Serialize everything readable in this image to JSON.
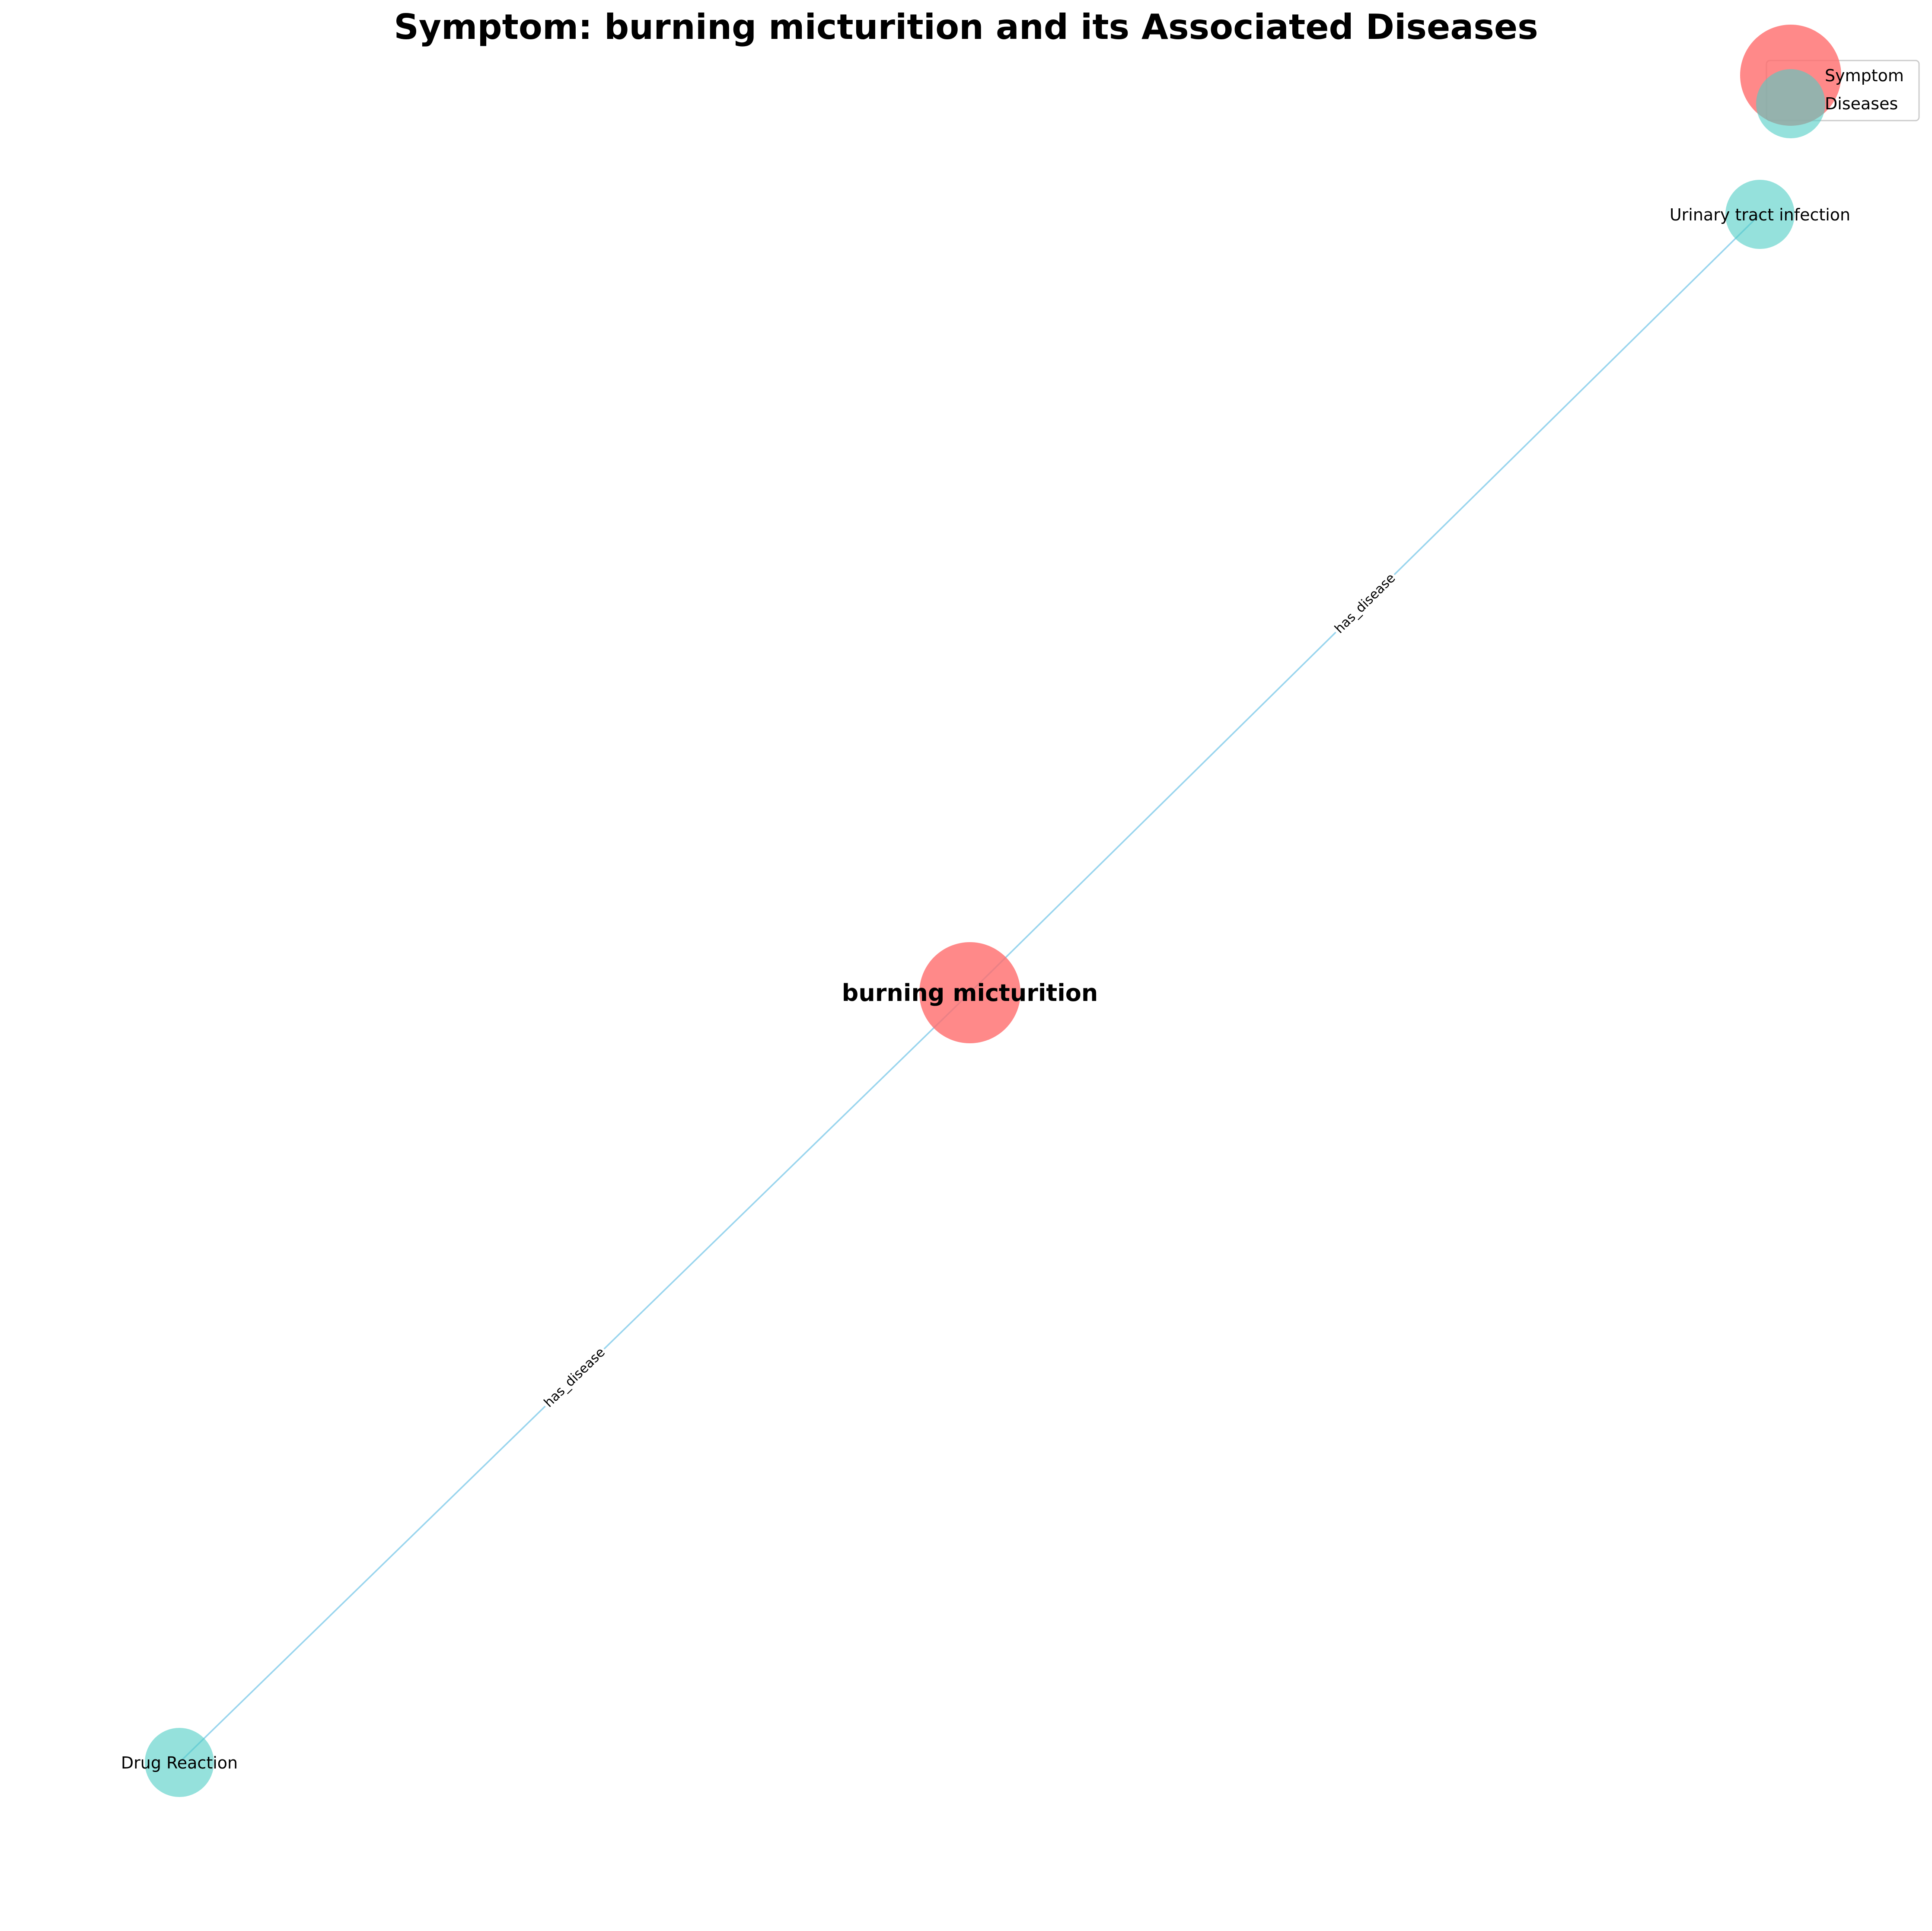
{
  "title": "Symptom: burning micturition and its Associated Diseases",
  "legend": {
    "symptom_label": "Symptom",
    "diseases_label": "Diseases"
  },
  "colors": {
    "symptom": "#ff6b6b",
    "disease": "#4ecdc4",
    "edge": "#87ceeb"
  },
  "nodes": {
    "symptom": {
      "label": "burning micturition"
    },
    "uti": {
      "label": "Urinary tract infection"
    },
    "drug_reaction": {
      "label": "Drug Reaction"
    }
  },
  "edges": {
    "to_uti": {
      "label": "has_disease"
    },
    "to_drug_reaction": {
      "label": "has_disease"
    }
  }
}
